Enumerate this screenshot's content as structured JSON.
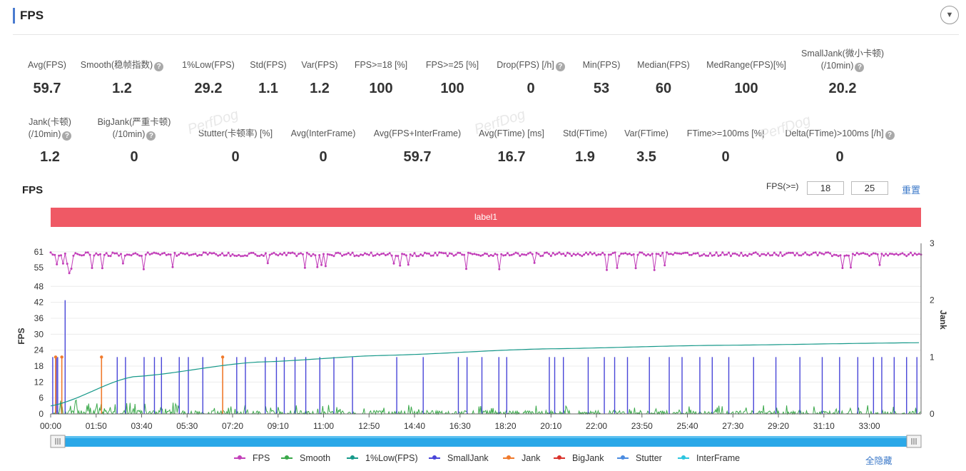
{
  "header": {
    "title": "FPS",
    "collapse_icon": "chevron-down-icon"
  },
  "metrics_row1": [
    {
      "label": "Avg(FPS)",
      "value": "59.7",
      "help": false
    },
    {
      "label": "Smooth(稳帧指数)",
      "value": "1.2",
      "help": true
    },
    {
      "label": "1%Low(FPS)",
      "value": "29.2",
      "help": false
    },
    {
      "label": "Std(FPS)",
      "value": "1.1",
      "help": false
    },
    {
      "label": "Var(FPS)",
      "value": "1.2",
      "help": false
    },
    {
      "label": "FPS>=18 [%]",
      "value": "100",
      "help": false
    },
    {
      "label": "FPS>=25 [%]",
      "value": "100",
      "help": false
    },
    {
      "label": "Drop(FPS) [/h]",
      "value": "0",
      "help": true
    },
    {
      "label": "Min(FPS)",
      "value": "53",
      "help": false
    },
    {
      "label": "Median(FPS)",
      "value": "60",
      "help": false
    },
    {
      "label": "MedRange(FPS)[%]",
      "value": "100",
      "help": false
    },
    {
      "label": "SmallJank(微小卡顿)",
      "label2": "(/10min)",
      "value": "20.2",
      "help": true
    }
  ],
  "metrics_row2": [
    {
      "label": "Jank(卡顿)",
      "label2": "(/10min)",
      "value": "1.2",
      "help": true
    },
    {
      "label": "BigJank(严重卡顿)",
      "label2": "(/10min)",
      "value": "0",
      "help": true
    },
    {
      "label": "Stutter(卡顿率) [%]",
      "value": "0",
      "help": false
    },
    {
      "label": "Avg(InterFrame)",
      "value": "0",
      "help": false
    },
    {
      "label": "Avg(FPS+InterFrame)",
      "value": "59.7",
      "help": false
    },
    {
      "label": "Avg(FTime) [ms]",
      "value": "16.7",
      "help": false
    },
    {
      "label": "Std(FTime)",
      "value": "1.9",
      "help": false
    },
    {
      "label": "Var(FTime)",
      "value": "3.5",
      "help": false
    },
    {
      "label": "FTime>=100ms [%]",
      "value": "0",
      "help": false
    },
    {
      "label": "Delta(FTime)>100ms [/h]",
      "value": "0",
      "help": true
    }
  ],
  "watermark": "PerfDog",
  "chart_section": {
    "title": "FPS",
    "filter_label": "FPS(>=)",
    "threshold1": "18",
    "threshold2": "25",
    "reset_label": "重置",
    "band_label": "label1",
    "hide_all_label": "全隐藏"
  },
  "chart_data": {
    "type": "line",
    "ylabel": "FPS",
    "y2label": "Jank",
    "y_ticks": [
      0,
      6,
      12,
      18,
      24,
      30,
      36,
      42,
      48,
      55,
      61
    ],
    "y2_ticks": [
      0,
      1,
      2,
      3
    ],
    "x_tick_labels": [
      "00:00",
      "01:50",
      "03:40",
      "05:30",
      "07:20",
      "09:10",
      "11:00",
      "12:50",
      "14:40",
      "16:30",
      "18:20",
      "20:10",
      "22:00",
      "23:50",
      "25:40",
      "27:30",
      "29:20",
      "31:10",
      "33:00"
    ],
    "duration_s": 2105,
    "series": [
      {
        "name": "FPS",
        "color": "#c23fb9",
        "typical": 60,
        "min": 53
      },
      {
        "name": "Smooth",
        "color": "#3aa84a"
      },
      {
        "name": "1%Low(FPS)",
        "color": "#17998a"
      },
      {
        "name": "SmallJank",
        "color": "#4845d8"
      },
      {
        "name": "Jank",
        "color": "#f07a2c"
      },
      {
        "name": "BigJank",
        "color": "#d9312a"
      },
      {
        "name": "Stutter",
        "color": "#4a8be0"
      },
      {
        "name": "InterFrame",
        "color": "#2cc5df"
      }
    ],
    "smalljank_times_s": [
      5,
      14,
      17,
      161,
      181,
      226,
      251,
      268,
      311,
      333,
      368,
      450,
      471,
      519,
      546,
      565,
      591,
      617,
      651,
      685,
      730,
      837,
      901,
      986,
      1007,
      1043,
      1084,
      1103,
      1206,
      1219,
      1240,
      1300,
      1339,
      1364,
      1395,
      1448,
      1496,
      1527,
      1570,
      1600,
      1640,
      1700,
      1754,
      1812,
      1866,
      1908,
      1952,
      1990,
      2010,
      2040,
      2070,
      2095
    ],
    "smalljank_tall_s": 35,
    "jank_times_s": [
      12,
      27,
      123,
      416
    ],
    "onepct_low_curve": [
      [
        0,
        3
      ],
      [
        200,
        14
      ],
      [
        500,
        19.5
      ],
      [
        800,
        22
      ],
      [
        1200,
        24.5
      ],
      [
        1600,
        25.8
      ],
      [
        2105,
        26.8
      ]
    ]
  }
}
